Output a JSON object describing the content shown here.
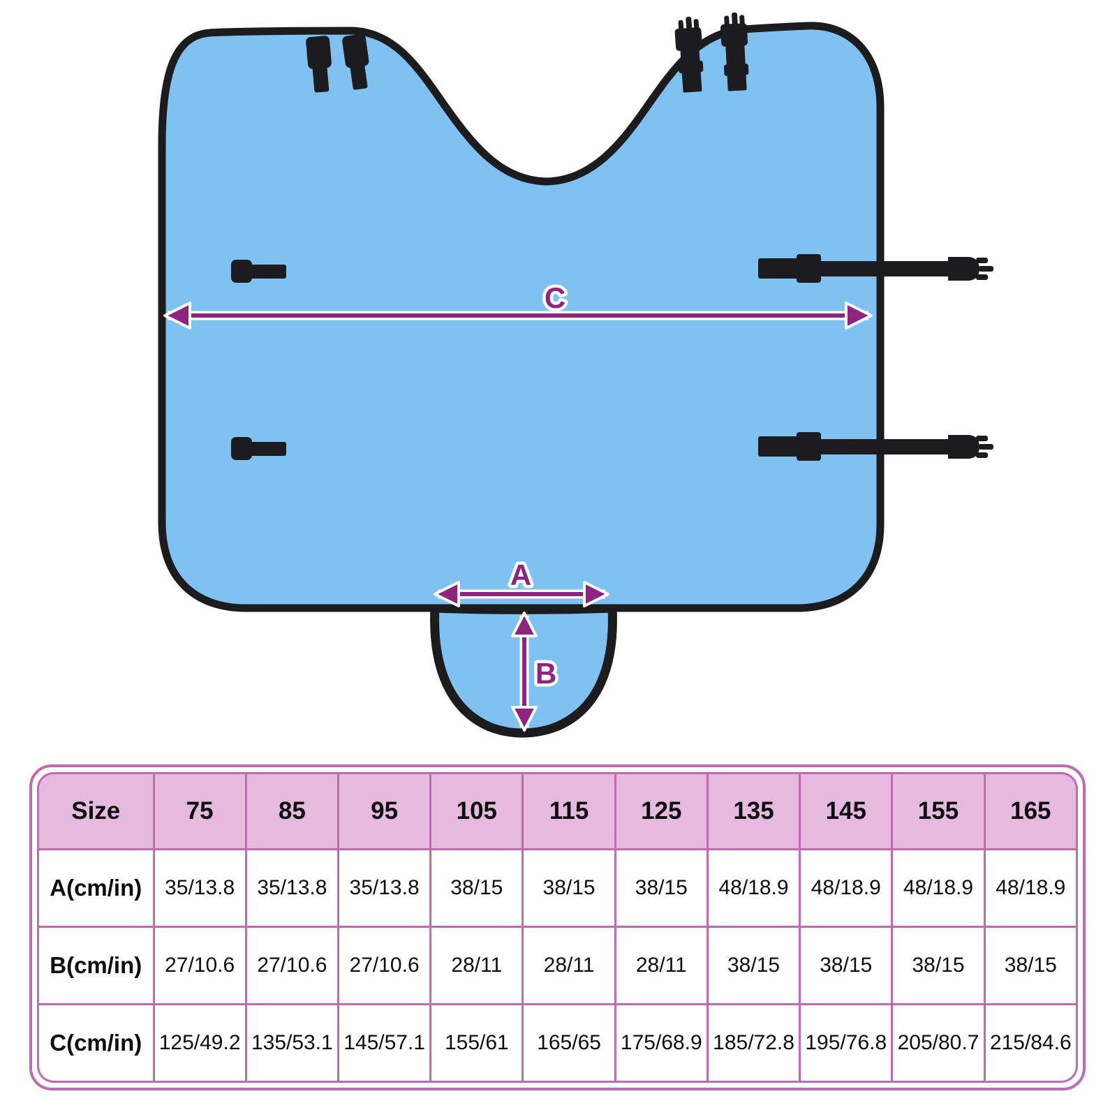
{
  "colors": {
    "fabric_blue": "#7fc2f1",
    "edge_black": "#1c1c1f",
    "dimension_purple": "#8e2480",
    "table_border_pink": "#c06ab3",
    "table_header_pink": "#e6b9df",
    "table_cell_white": "#ffffff"
  },
  "diagram": {
    "labels": {
      "width_a": "A",
      "depth_b": "B",
      "width_c": "C"
    }
  },
  "table": {
    "columns": [
      "Size",
      "75",
      "85",
      "95",
      "105",
      "115",
      "125",
      "135",
      "145",
      "155",
      "165"
    ],
    "rows": [
      {
        "label": "A(cm/in)",
        "values": [
          "35/13.8",
          "35/13.8",
          "35/13.8",
          "38/15",
          "38/15",
          "38/15",
          "48/18.9",
          "48/18.9",
          "48/18.9",
          "48/18.9"
        ]
      },
      {
        "label": "B(cm/in)",
        "values": [
          "27/10.6",
          "27/10.6",
          "27/10.6",
          "28/11",
          "28/11",
          "28/11",
          "38/15",
          "38/15",
          "38/15",
          "38/15"
        ]
      },
      {
        "label": "C(cm/in)",
        "values": [
          "125/49.2",
          "135/53.1",
          "145/57.1",
          "155/61",
          "165/65",
          "175/68.9",
          "185/72.8",
          "195/76.8",
          "205/80.7",
          "215/84.6"
        ]
      }
    ]
  }
}
